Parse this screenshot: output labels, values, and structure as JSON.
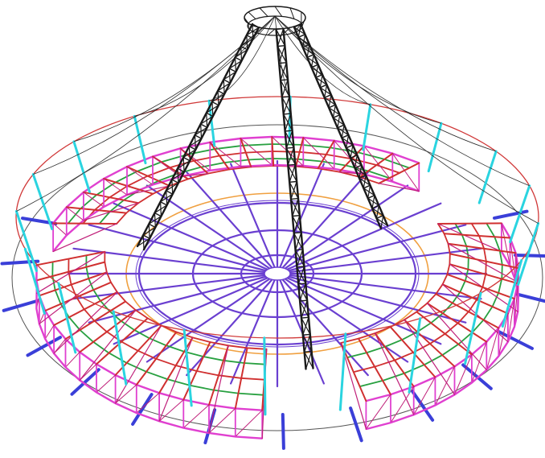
{
  "drawing": {
    "subject": "circular-grandstand-frame-with-central-mast",
    "colors": {
      "background": "#ffffff",
      "mast_truss": "#1a1a1a",
      "roof_cable": "#2a2a2a",
      "outer_columns": "#2ad4e0",
      "top_ring": "#d03838",
      "stand_main": "#e040d0",
      "stand_diagonal": "#c0207a",
      "stand_tier": "#28a040",
      "stand_rafter": "#d03030",
      "floor_radial": "#6a3fd0",
      "floor_ring": "#6a3fd0",
      "orange_ring": "#f0a040",
      "outer_struts": "#3a3fd8",
      "ground_ring": "#555555"
    },
    "counts": {
      "outer_columns": 20,
      "floor_radials": 28,
      "floor_rings": 3,
      "mast_legs": 3,
      "outer_struts": 22
    },
    "openings": [
      "front",
      "back-left",
      "right"
    ]
  }
}
